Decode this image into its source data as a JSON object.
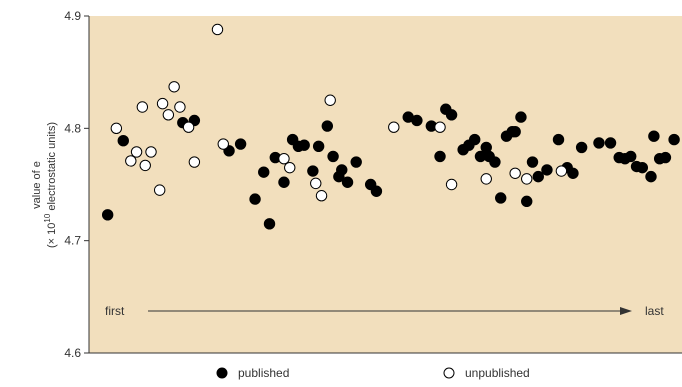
{
  "colors": {
    "plot_background": "#f2dfbd",
    "published_fill": "#000000",
    "unpublished_fill": "#ffffff",
    "marker_stroke": "#000000",
    "axis": "#333333"
  },
  "chart_data": {
    "type": "scatter",
    "title": "",
    "ylabel": "value of e (× 10^10 electrostatic units)",
    "ylabel_parts": {
      "main": "value of e",
      "prefix": "(× 10",
      "exponent": "10",
      "suffix": " electrostatic units)"
    },
    "xlabel": "",
    "ylim": [
      4.6,
      4.9
    ],
    "yticks": [
      "4.6",
      "4.7",
      "4.8",
      "4.9"
    ],
    "xlim": [
      0,
      100
    ],
    "x_axis_note": {
      "start": "first",
      "end": "last"
    },
    "grid": false,
    "legend_position": "bottom-center",
    "legend": [
      {
        "label": "published",
        "marker": "filled-circle"
      },
      {
        "label": "unpublished",
        "marker": "open-circle"
      }
    ],
    "series": [
      {
        "name": "published",
        "x": [
          1.5,
          4.2,
          14.5,
          16.5,
          22.5,
          24.5,
          27,
          28.5,
          29.5,
          30.5,
          32,
          33.5,
          34.5,
          35.5,
          37,
          38,
          39.5,
          40.5,
          41.5,
          42,
          43,
          44.5,
          47,
          48,
          53.5,
          55,
          57.5,
          59,
          60,
          61,
          63,
          64,
          65,
          66,
          67,
          67.5,
          68.5,
          69.5,
          70.5,
          71.5,
          72,
          73,
          74,
          75,
          76,
          77.5,
          79.5,
          81,
          82,
          83.5,
          86.5,
          88.5,
          90,
          91,
          92,
          93,
          94,
          95.5,
          96,
          97,
          98,
          99.5
        ],
        "values": [
          4.723,
          4.789,
          4.805,
          4.807,
          4.78,
          4.786,
          4.737,
          4.761,
          4.715,
          4.774,
          4.752,
          4.79,
          4.784,
          4.785,
          4.762,
          4.784,
          4.802,
          4.775,
          4.757,
          4.763,
          4.752,
          4.77,
          4.75,
          4.744,
          4.81,
          4.807,
          4.802,
          4.775,
          4.817,
          4.812,
          4.781,
          4.785,
          4.79,
          4.775,
          4.783,
          4.775,
          4.77,
          4.738,
          4.793,
          4.797,
          4.797,
          4.81,
          4.735,
          4.77,
          4.757,
          4.763,
          4.79,
          4.765,
          4.76,
          4.783,
          4.787,
          4.787,
          4.774,
          4.773,
          4.775,
          4.766,
          4.765,
          4.757,
          4.793,
          4.773,
          4.774,
          4.79
        ]
      },
      {
        "name": "unpublished",
        "x": [
          3,
          5.5,
          6.5,
          7.5,
          8,
          9,
          10.5,
          11,
          12,
          13,
          14,
          15.5,
          16.5,
          20.5,
          21.5,
          32,
          33,
          37.5,
          38.5,
          40,
          51,
          59,
          61,
          67,
          72,
          74,
          80
        ],
        "values": [
          4.8,
          4.771,
          4.779,
          4.819,
          4.767,
          4.779,
          4.745,
          4.822,
          4.812,
          4.837,
          4.819,
          4.801,
          4.77,
          4.888,
          4.786,
          4.773,
          4.765,
          4.751,
          4.74,
          4.825,
          4.801,
          4.801,
          4.75,
          4.755,
          4.76,
          4.755,
          4.762
        ]
      }
    ]
  }
}
